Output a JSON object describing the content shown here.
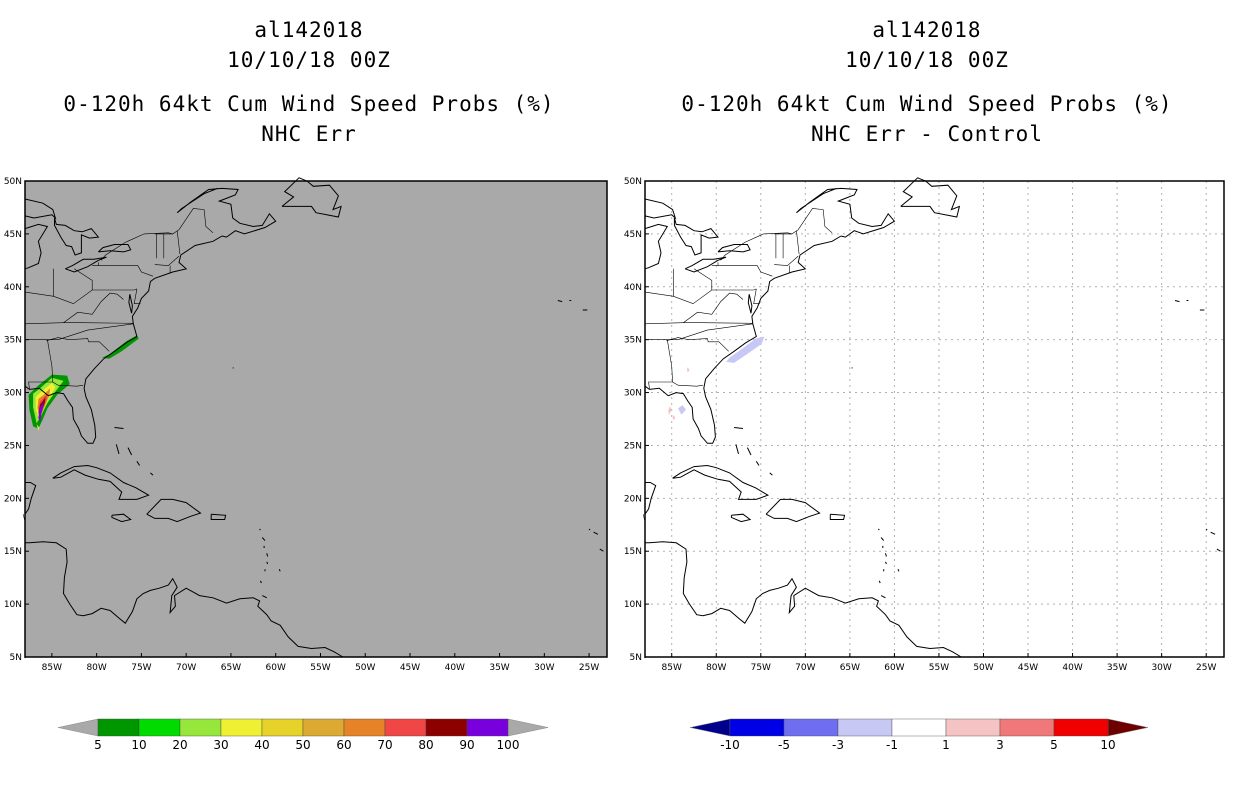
{
  "panels": [
    {
      "id": "left",
      "storm_id": "al142018",
      "datetime": "10/10/18 00Z",
      "product": "0-120h 64kt Cum Wind Speed Probs (%)",
      "subtitle": "NHC Err",
      "background_color": "#a9a9a9",
      "colorbar": {
        "labels": [
          "5",
          "10",
          "20",
          "30",
          "40",
          "50",
          "60",
          "70",
          "80",
          "90",
          "100"
        ],
        "colors": [
          "#009600",
          "#00dc00",
          "#96e63c",
          "#f0f032",
          "#e6d228",
          "#dcaa32",
          "#e68228",
          "#f04646",
          "#8c0000",
          "#7800dc"
        ],
        "under_color": "#a9a9a9",
        "over_color": "#a9a9a9"
      }
    },
    {
      "id": "right",
      "storm_id": "al142018",
      "datetime": "10/10/18 00Z",
      "product": "0-120h 64kt Cum Wind Speed Probs (%)",
      "subtitle": "NHC Err - Control",
      "background_color": "#ffffff",
      "colorbar": {
        "labels": [
          "-10",
          "-5",
          "-3",
          "-1",
          "1",
          "3",
          "5",
          "10"
        ],
        "colors": [
          "#0000e6",
          "#6e6ef0",
          "#c8c8f5",
          "#ffffff",
          "#f5c3c3",
          "#f07878",
          "#f00000"
        ],
        "under_color": "#00008c",
        "over_color": "#6e0000"
      }
    }
  ],
  "axes": {
    "lat_labels": [
      "50N",
      "45N",
      "40N",
      "35N",
      "30N",
      "25N",
      "20N",
      "15N",
      "10N",
      "5N"
    ],
    "lon_labels": [
      "85W",
      "80W",
      "75W",
      "70W",
      "65W",
      "60W",
      "55W",
      "50W",
      "45W",
      "40W",
      "35W",
      "30W",
      "25W"
    ]
  },
  "map_extent": {
    "lon_min": -88,
    "lon_max": -23,
    "lat_min": 5,
    "lat_max": 50
  }
}
